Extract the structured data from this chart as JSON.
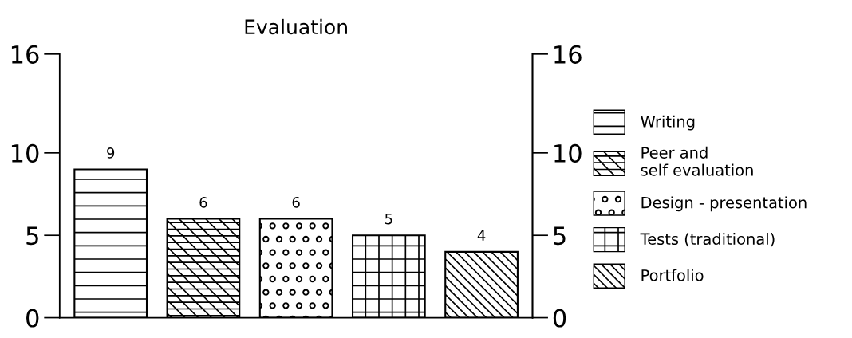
{
  "chart_data": {
    "type": "bar",
    "title": "Evaluation",
    "categories": [
      null,
      null,
      null,
      null,
      null
    ],
    "series": [
      {
        "name": "Writing",
        "color": "#000000",
        "values": [
          9,
          null,
          null,
          null,
          null
        ]
      },
      {
        "name": "Peer and\nself evaluation",
        "color": "#000000",
        "values": [
          null,
          6,
          null,
          null,
          null
        ]
      },
      {
        "name": "Design - presentation",
        "color": "#000000",
        "values": [
          null,
          null,
          6,
          null,
          null
        ]
      },
      {
        "name": "Tests (traditional)",
        "color": "#000000",
        "values": [
          null,
          null,
          null,
          5,
          null
        ]
      },
      {
        "name": "Portfolio",
        "color": "#000000",
        "values": [
          null,
          null,
          null,
          null,
          4
        ]
      }
    ],
    "ylim": [
      0,
      16
    ],
    "yticks": [
      0,
      5,
      10,
      16
    ],
    "y2lim": [
      0,
      16
    ],
    "y2ticks": [
      0,
      5,
      10,
      16
    ],
    "data_labels": true,
    "grid": false,
    "legend": "right"
  }
}
